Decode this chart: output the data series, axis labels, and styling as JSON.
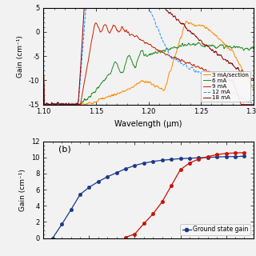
{
  "panel_a": {
    "xlabel": "Wavelength (μm)",
    "ylabel": "Gain (cm⁻¹)",
    "xlim": [
      1.1,
      1.3
    ],
    "ylim": [
      -15,
      5
    ],
    "yticks": [
      -15,
      -10,
      -5,
      0,
      5
    ],
    "xticks": [
      1.1,
      1.15,
      1.2,
      1.25,
      1.3
    ],
    "xtick_labels": [
      "1.10",
      "1.15",
      "1.20",
      "1.25",
      "1.30"
    ],
    "ytick_labels": [
      "-15",
      "-10",
      "-5",
      "0",
      "5"
    ],
    "legend_labels": [
      "3 mA/section",
      "6 mA",
      "9 mA",
      "12 mA",
      "18 mA"
    ],
    "legend_colors": [
      "#FF8C00",
      "#228B22",
      "#CC2200",
      "#1E90FF",
      "#8B0000"
    ],
    "legend_styles": [
      "-",
      "-",
      "-",
      "--",
      "-"
    ]
  },
  "panel_b": {
    "ylabel": "Gain (cm⁻¹)",
    "ylim": [
      0,
      12
    ],
    "yticks": [
      0,
      2,
      4,
      6,
      8,
      10,
      12
    ],
    "ytick_labels": [
      "0",
      "2",
      "4",
      "6",
      "8",
      "10",
      "12"
    ],
    "legend_label_blue": "Ground state gain",
    "blue_color": "#1A3A8A",
    "red_color": "#CC1100",
    "label_b": "(b)",
    "blue_x": [
      1,
      2,
      3,
      4,
      5,
      6,
      7,
      8,
      9,
      10,
      11,
      12,
      13,
      14,
      15,
      16,
      17,
      18,
      19,
      20,
      21,
      22
    ],
    "blue_y": [
      0,
      1.7,
      3.5,
      5.4,
      6.3,
      7.0,
      7.6,
      8.1,
      8.6,
      9.0,
      9.3,
      9.5,
      9.65,
      9.75,
      9.85,
      9.9,
      9.95,
      10.0,
      10.05,
      10.1,
      10.1,
      10.15
    ],
    "red_x": [
      9,
      10,
      11,
      12,
      13,
      14,
      15,
      16,
      17,
      18,
      19,
      20,
      21,
      22
    ],
    "red_y": [
      0.1,
      0.5,
      1.8,
      3.0,
      4.5,
      6.5,
      8.5,
      9.3,
      9.8,
      10.1,
      10.35,
      10.5,
      10.55,
      10.6
    ]
  },
  "background_color": "#f2f2f2"
}
